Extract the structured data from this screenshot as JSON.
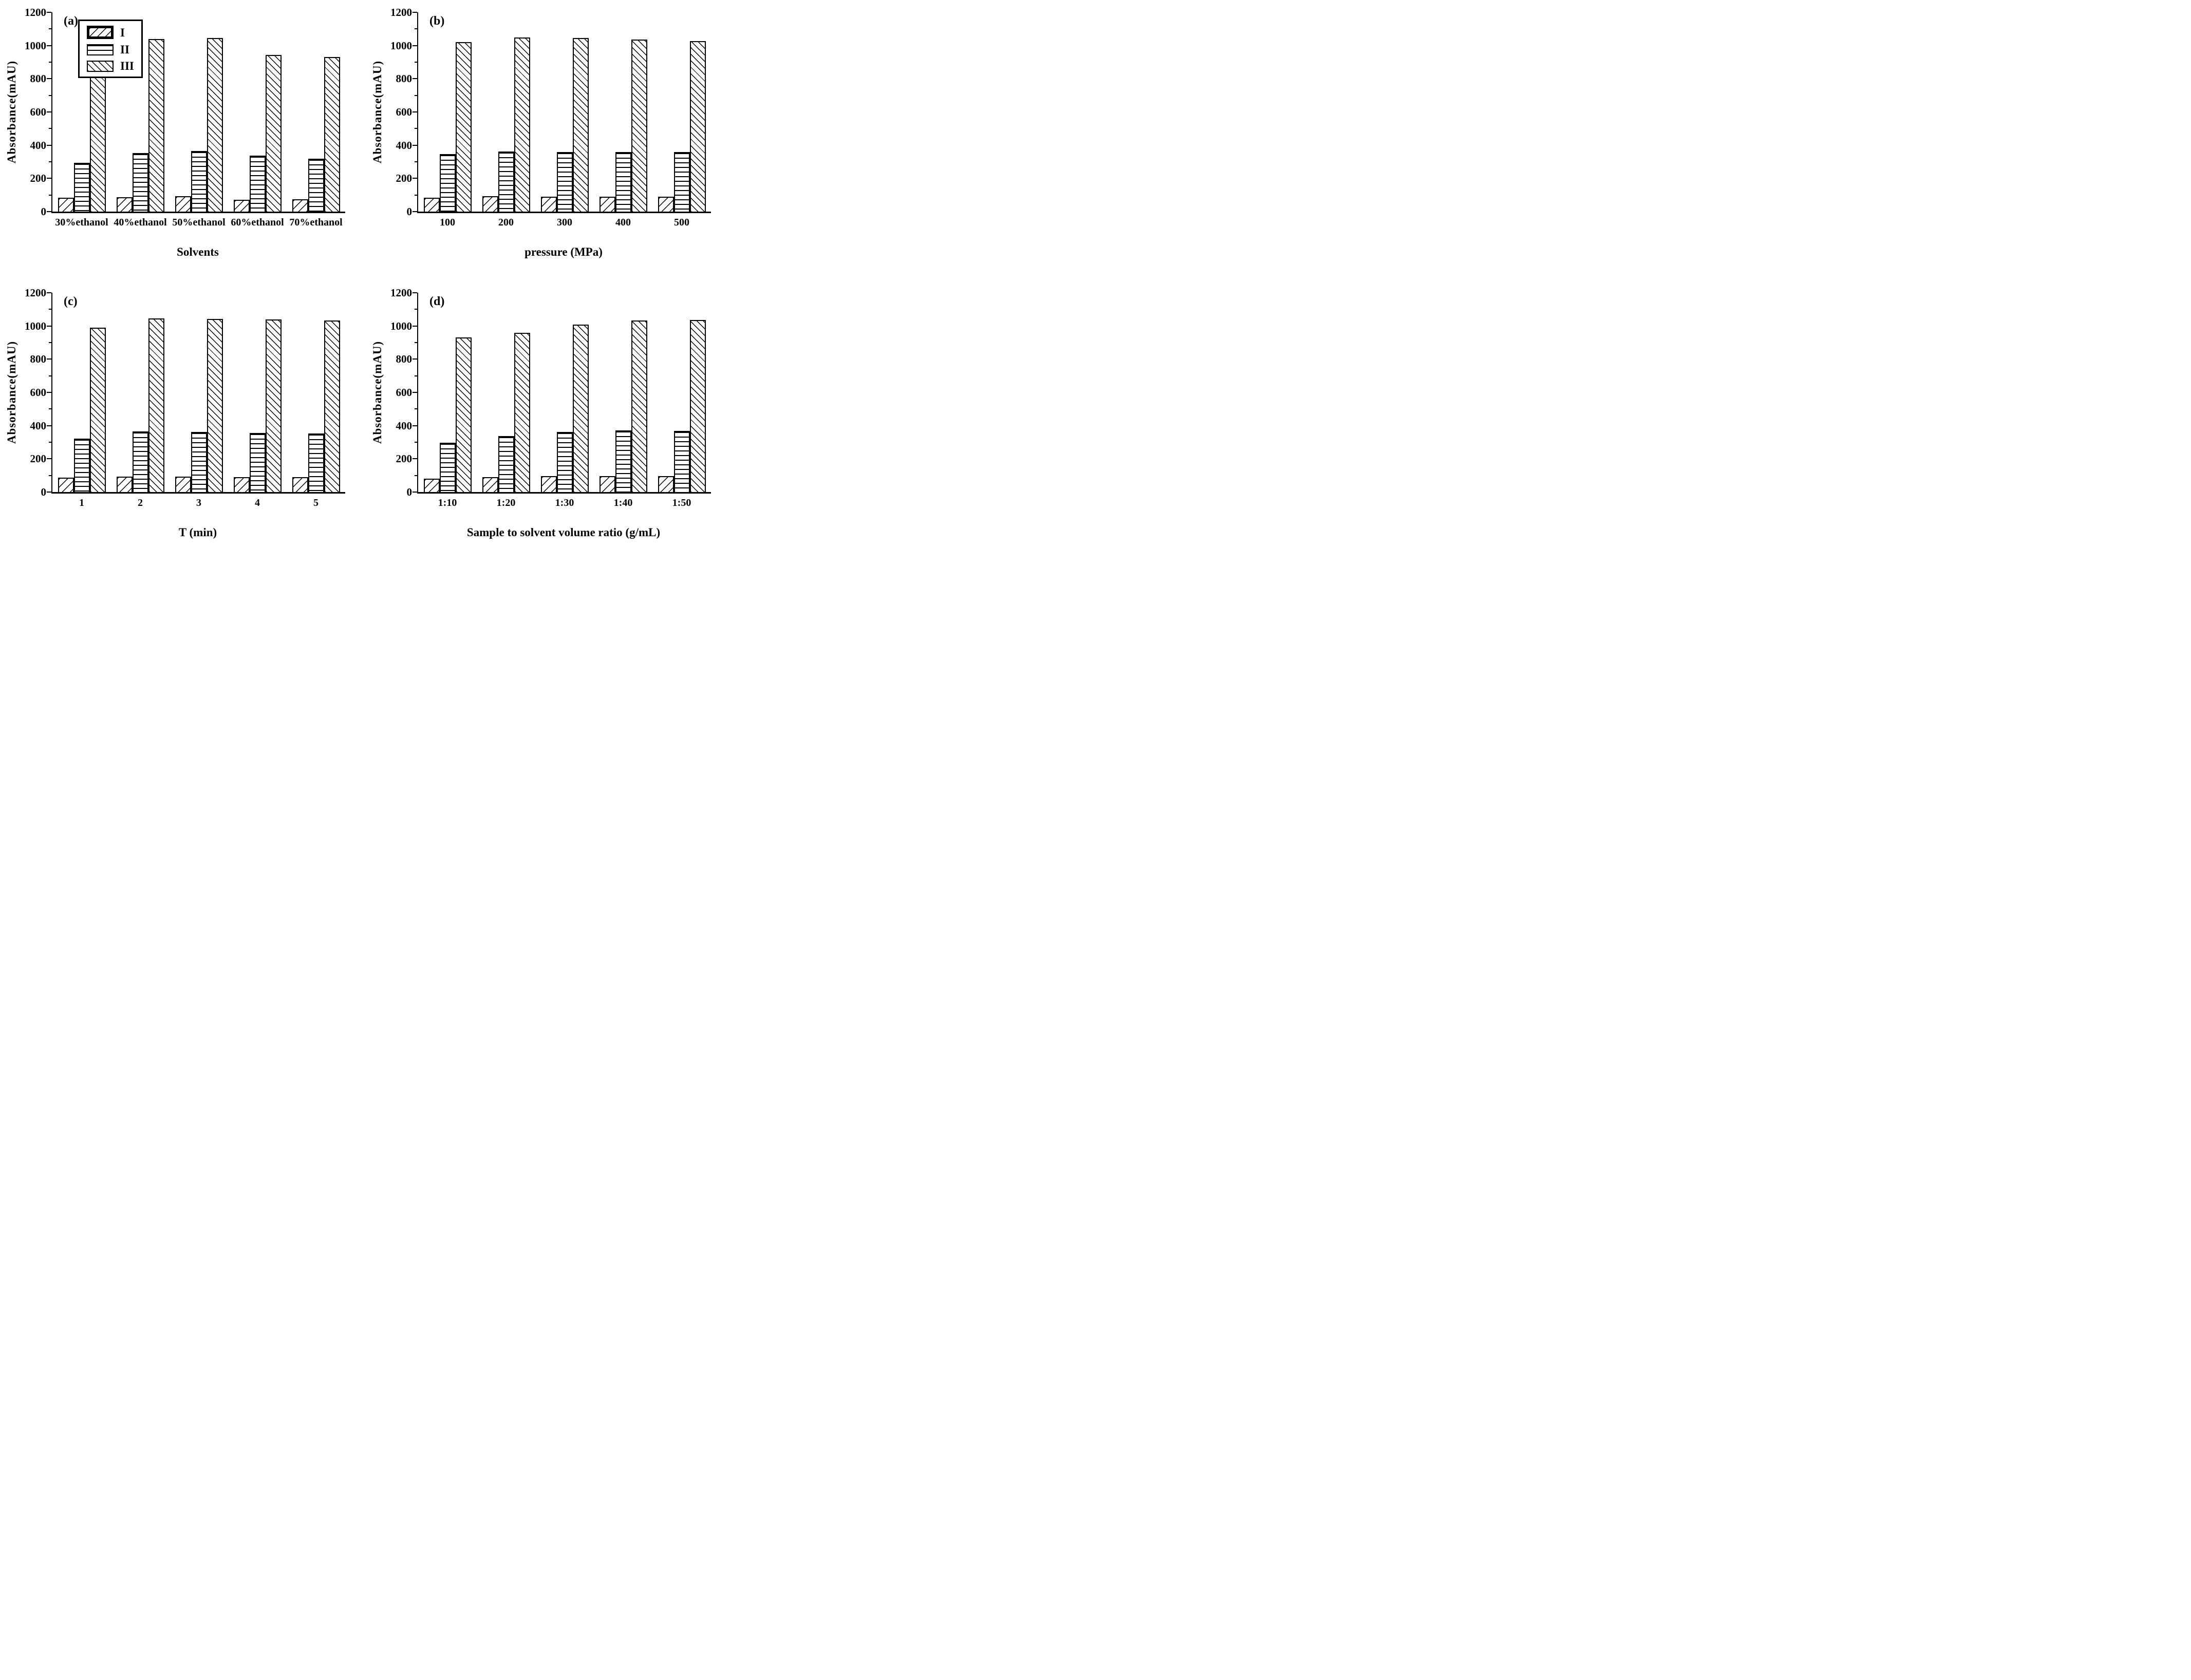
{
  "colors": {
    "foreground": "#000000",
    "background": "#ffffff"
  },
  "legend": {
    "entries": [
      "I",
      "II",
      "III"
    ],
    "position": "top-left of panel (a)"
  },
  "chart_data": [
    {
      "type": "bar",
      "panel_label": "(a)",
      "xlabel": "Solvents",
      "ylabel": "Absorbance(mAU)",
      "ylim": [
        0,
        1200
      ],
      "yticks": [
        0,
        200,
        400,
        600,
        800,
        1000,
        1200
      ],
      "minor_tick_step": 100,
      "grid": false,
      "categories": [
        "30%ethanol",
        "40%ethanol",
        "50%ethanol",
        "60%ethanol",
        "70%ethanol"
      ],
      "series": [
        {
          "name": "I",
          "hatch": "diagonal-forward",
          "values": [
            85,
            87,
            92,
            70,
            73
          ]
        },
        {
          "name": "II",
          "hatch": "horizontal",
          "values": [
            293,
            354,
            364,
            336,
            320
          ]
        },
        {
          "name": "III",
          "hatch": "diagonal-back",
          "values": [
            862,
            1040,
            1046,
            944,
            932
          ]
        }
      ]
    },
    {
      "type": "bar",
      "panel_label": "(b)",
      "xlabel": "pressure (MPa)",
      "ylabel": "Absorbance(mAU)",
      "ylim": [
        0,
        1200
      ],
      "yticks": [
        0,
        200,
        400,
        600,
        800,
        1000,
        1200
      ],
      "minor_tick_step": 100,
      "grid": false,
      "categories": [
        "100",
        "200",
        "300",
        "400",
        "500"
      ],
      "series": [
        {
          "name": "I",
          "hatch": "diagonal-forward",
          "values": [
            84,
            92,
            91,
            89,
            89
          ]
        },
        {
          "name": "II",
          "hatch": "horizontal",
          "values": [
            345,
            362,
            358,
            360,
            358
          ]
        },
        {
          "name": "III",
          "hatch": "diagonal-back",
          "values": [
            1022,
            1047,
            1044,
            1035,
            1028
          ]
        }
      ]
    },
    {
      "type": "bar",
      "panel_label": "(c)",
      "xlabel": "T (min)",
      "ylabel": "Absorbance(mAU)",
      "ylim": [
        0,
        1200
      ],
      "yticks": [
        0,
        200,
        400,
        600,
        800,
        1000,
        1200
      ],
      "minor_tick_step": 100,
      "grid": false,
      "categories": [
        "1",
        "2",
        "3",
        "4",
        "5"
      ],
      "series": [
        {
          "name": "I",
          "hatch": "diagonal-forward",
          "values": [
            86,
            94,
            92,
            89,
            90
          ]
        },
        {
          "name": "II",
          "hatch": "horizontal",
          "values": [
            322,
            364,
            363,
            357,
            354
          ]
        },
        {
          "name": "III",
          "hatch": "diagonal-back",
          "values": [
            990,
            1046,
            1043,
            1039,
            1033
          ]
        }
      ]
    },
    {
      "type": "bar",
      "panel_label": "(d)",
      "xlabel": "Sample to solvent volume ratio (g/mL)",
      "ylabel": "Absorbance(mAU)",
      "ylim": [
        0,
        1200
      ],
      "yticks": [
        0,
        200,
        400,
        600,
        800,
        1000,
        1200
      ],
      "minor_tick_step": 100,
      "grid": false,
      "categories": [
        "1:10",
        "1:20",
        "1:30",
        "1:40",
        "1:50"
      ],
      "series": [
        {
          "name": "I",
          "hatch": "diagonal-forward",
          "values": [
            80,
            90,
            95,
            96,
            96
          ]
        },
        {
          "name": "II",
          "hatch": "horizontal",
          "values": [
            298,
            337,
            363,
            370,
            367
          ]
        },
        {
          "name": "III",
          "hatch": "diagonal-back",
          "values": [
            931,
            960,
            1009,
            1034,
            1036
          ]
        }
      ]
    }
  ]
}
